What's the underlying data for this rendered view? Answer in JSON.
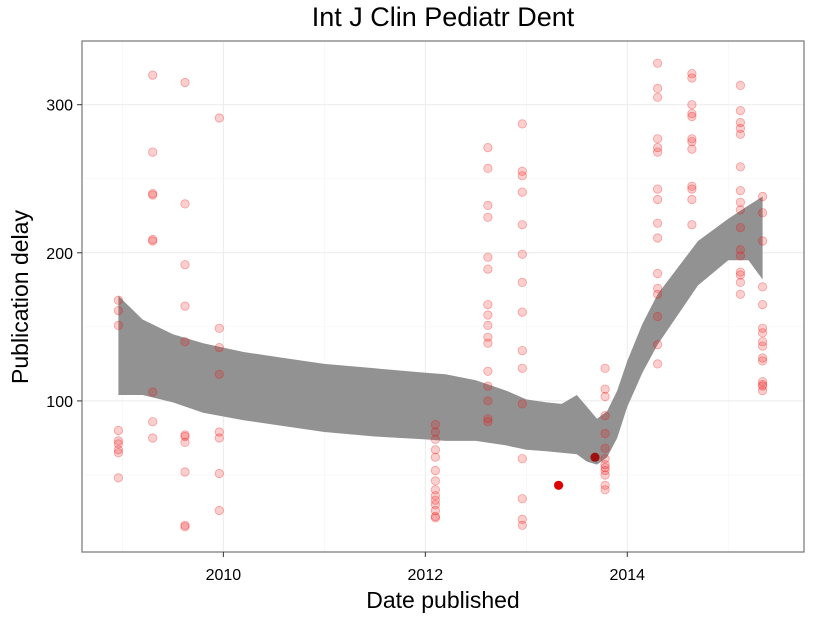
{
  "chart_data": {
    "type": "scatter",
    "title": "Int J Clin Pediatr Dent",
    "xlabel": "Date published",
    "ylabel": "Publication delay",
    "xlim": [
      2008.6,
      2015.75
    ],
    "ylim": [
      -2,
      343
    ],
    "x_ticks": [
      2010,
      2012,
      2014
    ],
    "x_tick_labels": [
      "2010",
      "2012",
      "2014"
    ],
    "y_ticks": [
      100,
      200,
      300
    ],
    "y_tick_labels": [
      "100",
      "200",
      "300"
    ],
    "grid": true,
    "colors": {
      "points": "#ee1111",
      "highlight": "#dd0000",
      "highlight_dark": "#a01010",
      "ribbon": "#8c8c8c"
    },
    "series": [
      {
        "kind": "points",
        "opacity": 0.2,
        "points": [
          [
            2008.96,
            168
          ],
          [
            2008.96,
            161
          ],
          [
            2008.96,
            151
          ],
          [
            2008.96,
            80
          ],
          [
            2008.96,
            73
          ],
          [
            2008.96,
            71
          ],
          [
            2008.96,
            67
          ],
          [
            2008.96,
            65
          ],
          [
            2008.96,
            48
          ],
          [
            2009.3,
            320
          ],
          [
            2009.3,
            268
          ],
          [
            2009.3,
            240
          ],
          [
            2009.3,
            239
          ],
          [
            2009.3,
            209
          ],
          [
            2009.3,
            208
          ],
          [
            2009.3,
            106
          ],
          [
            2009.3,
            86
          ],
          [
            2009.3,
            75
          ],
          [
            2009.62,
            315
          ],
          [
            2009.62,
            233
          ],
          [
            2009.62,
            192
          ],
          [
            2009.62,
            164
          ],
          [
            2009.62,
            140
          ],
          [
            2009.62,
            77
          ],
          [
            2009.62,
            76
          ],
          [
            2009.62,
            72
          ],
          [
            2009.62,
            52
          ],
          [
            2009.62,
            16
          ],
          [
            2009.62,
            15
          ],
          [
            2009.96,
            291
          ],
          [
            2009.96,
            149
          ],
          [
            2009.96,
            136
          ],
          [
            2009.96,
            118
          ],
          [
            2009.96,
            79
          ],
          [
            2009.96,
            75
          ],
          [
            2009.96,
            51
          ],
          [
            2009.96,
            26
          ],
          [
            2012.1,
            84
          ],
          [
            2012.1,
            79
          ],
          [
            2012.1,
            74
          ],
          [
            2012.1,
            67
          ],
          [
            2012.1,
            62
          ],
          [
            2012.1,
            53
          ],
          [
            2012.1,
            46
          ],
          [
            2012.1,
            40
          ],
          [
            2012.1,
            36
          ],
          [
            2012.1,
            33
          ],
          [
            2012.1,
            30
          ],
          [
            2012.1,
            26
          ],
          [
            2012.1,
            22
          ],
          [
            2012.1,
            21
          ],
          [
            2012.62,
            271
          ],
          [
            2012.62,
            257
          ],
          [
            2012.62,
            232
          ],
          [
            2012.62,
            224
          ],
          [
            2012.62,
            197
          ],
          [
            2012.62,
            189
          ],
          [
            2012.62,
            165
          ],
          [
            2012.62,
            158
          ],
          [
            2012.62,
            151
          ],
          [
            2012.62,
            143
          ],
          [
            2012.62,
            139
          ],
          [
            2012.62,
            120
          ],
          [
            2012.62,
            110
          ],
          [
            2012.62,
            100
          ],
          [
            2012.62,
            88
          ],
          [
            2012.62,
            86
          ],
          [
            2012.96,
            287
          ],
          [
            2012.96,
            255
          ],
          [
            2012.96,
            252
          ],
          [
            2012.96,
            241
          ],
          [
            2012.96,
            219
          ],
          [
            2012.96,
            199
          ],
          [
            2012.96,
            180
          ],
          [
            2012.96,
            160
          ],
          [
            2012.96,
            134
          ],
          [
            2012.96,
            122
          ],
          [
            2012.96,
            98
          ],
          [
            2012.96,
            61
          ],
          [
            2012.96,
            34
          ],
          [
            2012.96,
            20
          ],
          [
            2012.96,
            16
          ],
          [
            2013.78,
            122
          ],
          [
            2013.78,
            108
          ],
          [
            2013.78,
            103
          ],
          [
            2013.78,
            90
          ],
          [
            2013.78,
            78
          ],
          [
            2013.78,
            68
          ],
          [
            2013.78,
            61
          ],
          [
            2013.78,
            57
          ],
          [
            2013.78,
            55
          ],
          [
            2013.78,
            53
          ],
          [
            2013.78,
            50
          ],
          [
            2013.78,
            43
          ],
          [
            2013.78,
            40
          ],
          [
            2014.3,
            328
          ],
          [
            2014.3,
            311
          ],
          [
            2014.3,
            305
          ],
          [
            2014.3,
            277
          ],
          [
            2014.3,
            271
          ],
          [
            2014.3,
            268
          ],
          [
            2014.3,
            243
          ],
          [
            2014.3,
            236
          ],
          [
            2014.3,
            220
          ],
          [
            2014.3,
            210
          ],
          [
            2014.3,
            186
          ],
          [
            2014.3,
            176
          ],
          [
            2014.3,
            172
          ],
          [
            2014.3,
            157
          ],
          [
            2014.3,
            138
          ],
          [
            2014.3,
            125
          ],
          [
            2014.64,
            321
          ],
          [
            2014.64,
            318
          ],
          [
            2014.64,
            300
          ],
          [
            2014.64,
            294
          ],
          [
            2014.64,
            292
          ],
          [
            2014.64,
            277
          ],
          [
            2014.64,
            275
          ],
          [
            2014.64,
            270
          ],
          [
            2014.64,
            245
          ],
          [
            2014.64,
            243
          ],
          [
            2014.64,
            236
          ],
          [
            2014.64,
            219
          ],
          [
            2015.12,
            313
          ],
          [
            2015.12,
            296
          ],
          [
            2015.12,
            288
          ],
          [
            2015.12,
            284
          ],
          [
            2015.12,
            280
          ],
          [
            2015.12,
            258
          ],
          [
            2015.12,
            242
          ],
          [
            2015.12,
            234
          ],
          [
            2015.12,
            229
          ],
          [
            2015.12,
            217
          ],
          [
            2015.12,
            202
          ],
          [
            2015.12,
            198
          ],
          [
            2015.12,
            187
          ],
          [
            2015.12,
            185
          ],
          [
            2015.12,
            180
          ],
          [
            2015.12,
            172
          ],
          [
            2015.34,
            238
          ],
          [
            2015.34,
            227
          ],
          [
            2015.34,
            208
          ],
          [
            2015.34,
            177
          ],
          [
            2015.34,
            165
          ],
          [
            2015.34,
            149
          ],
          [
            2015.34,
            146
          ],
          [
            2015.34,
            140
          ],
          [
            2015.34,
            137
          ],
          [
            2015.34,
            129
          ],
          [
            2015.34,
            127
          ],
          [
            2015.34,
            113
          ],
          [
            2015.34,
            111
          ],
          [
            2015.34,
            110
          ],
          [
            2015.34,
            107
          ]
        ]
      },
      {
        "kind": "highlight",
        "points": [
          [
            2013.32,
            43
          ],
          [
            2013.68,
            62
          ]
        ]
      }
    ],
    "ribbon": {
      "x": [
        2008.96,
        2009.2,
        2009.5,
        2009.8,
        2010.2,
        2010.6,
        2011.0,
        2011.5,
        2012.0,
        2012.2,
        2012.5,
        2012.8,
        2013.0,
        2013.2,
        2013.35,
        2013.5,
        2013.6,
        2013.7,
        2013.8,
        2013.9,
        2014.0,
        2014.15,
        2014.3,
        2014.5,
        2014.7,
        2015.0,
        2015.2,
        2015.34
      ],
      "upper": [
        171,
        155,
        145,
        139,
        133,
        129,
        125,
        122,
        119,
        118,
        114,
        107,
        101,
        99,
        98,
        104,
        96,
        88,
        93,
        107,
        127,
        152,
        172,
        190,
        208,
        223,
        232,
        238
      ],
      "lower": [
        104,
        104,
        99,
        92,
        87,
        83,
        79,
        76,
        74,
        73,
        73,
        70,
        67,
        66,
        65,
        64,
        59,
        57,
        62,
        75,
        96,
        119,
        138,
        158,
        178,
        195,
        195,
        182
      ]
    }
  }
}
